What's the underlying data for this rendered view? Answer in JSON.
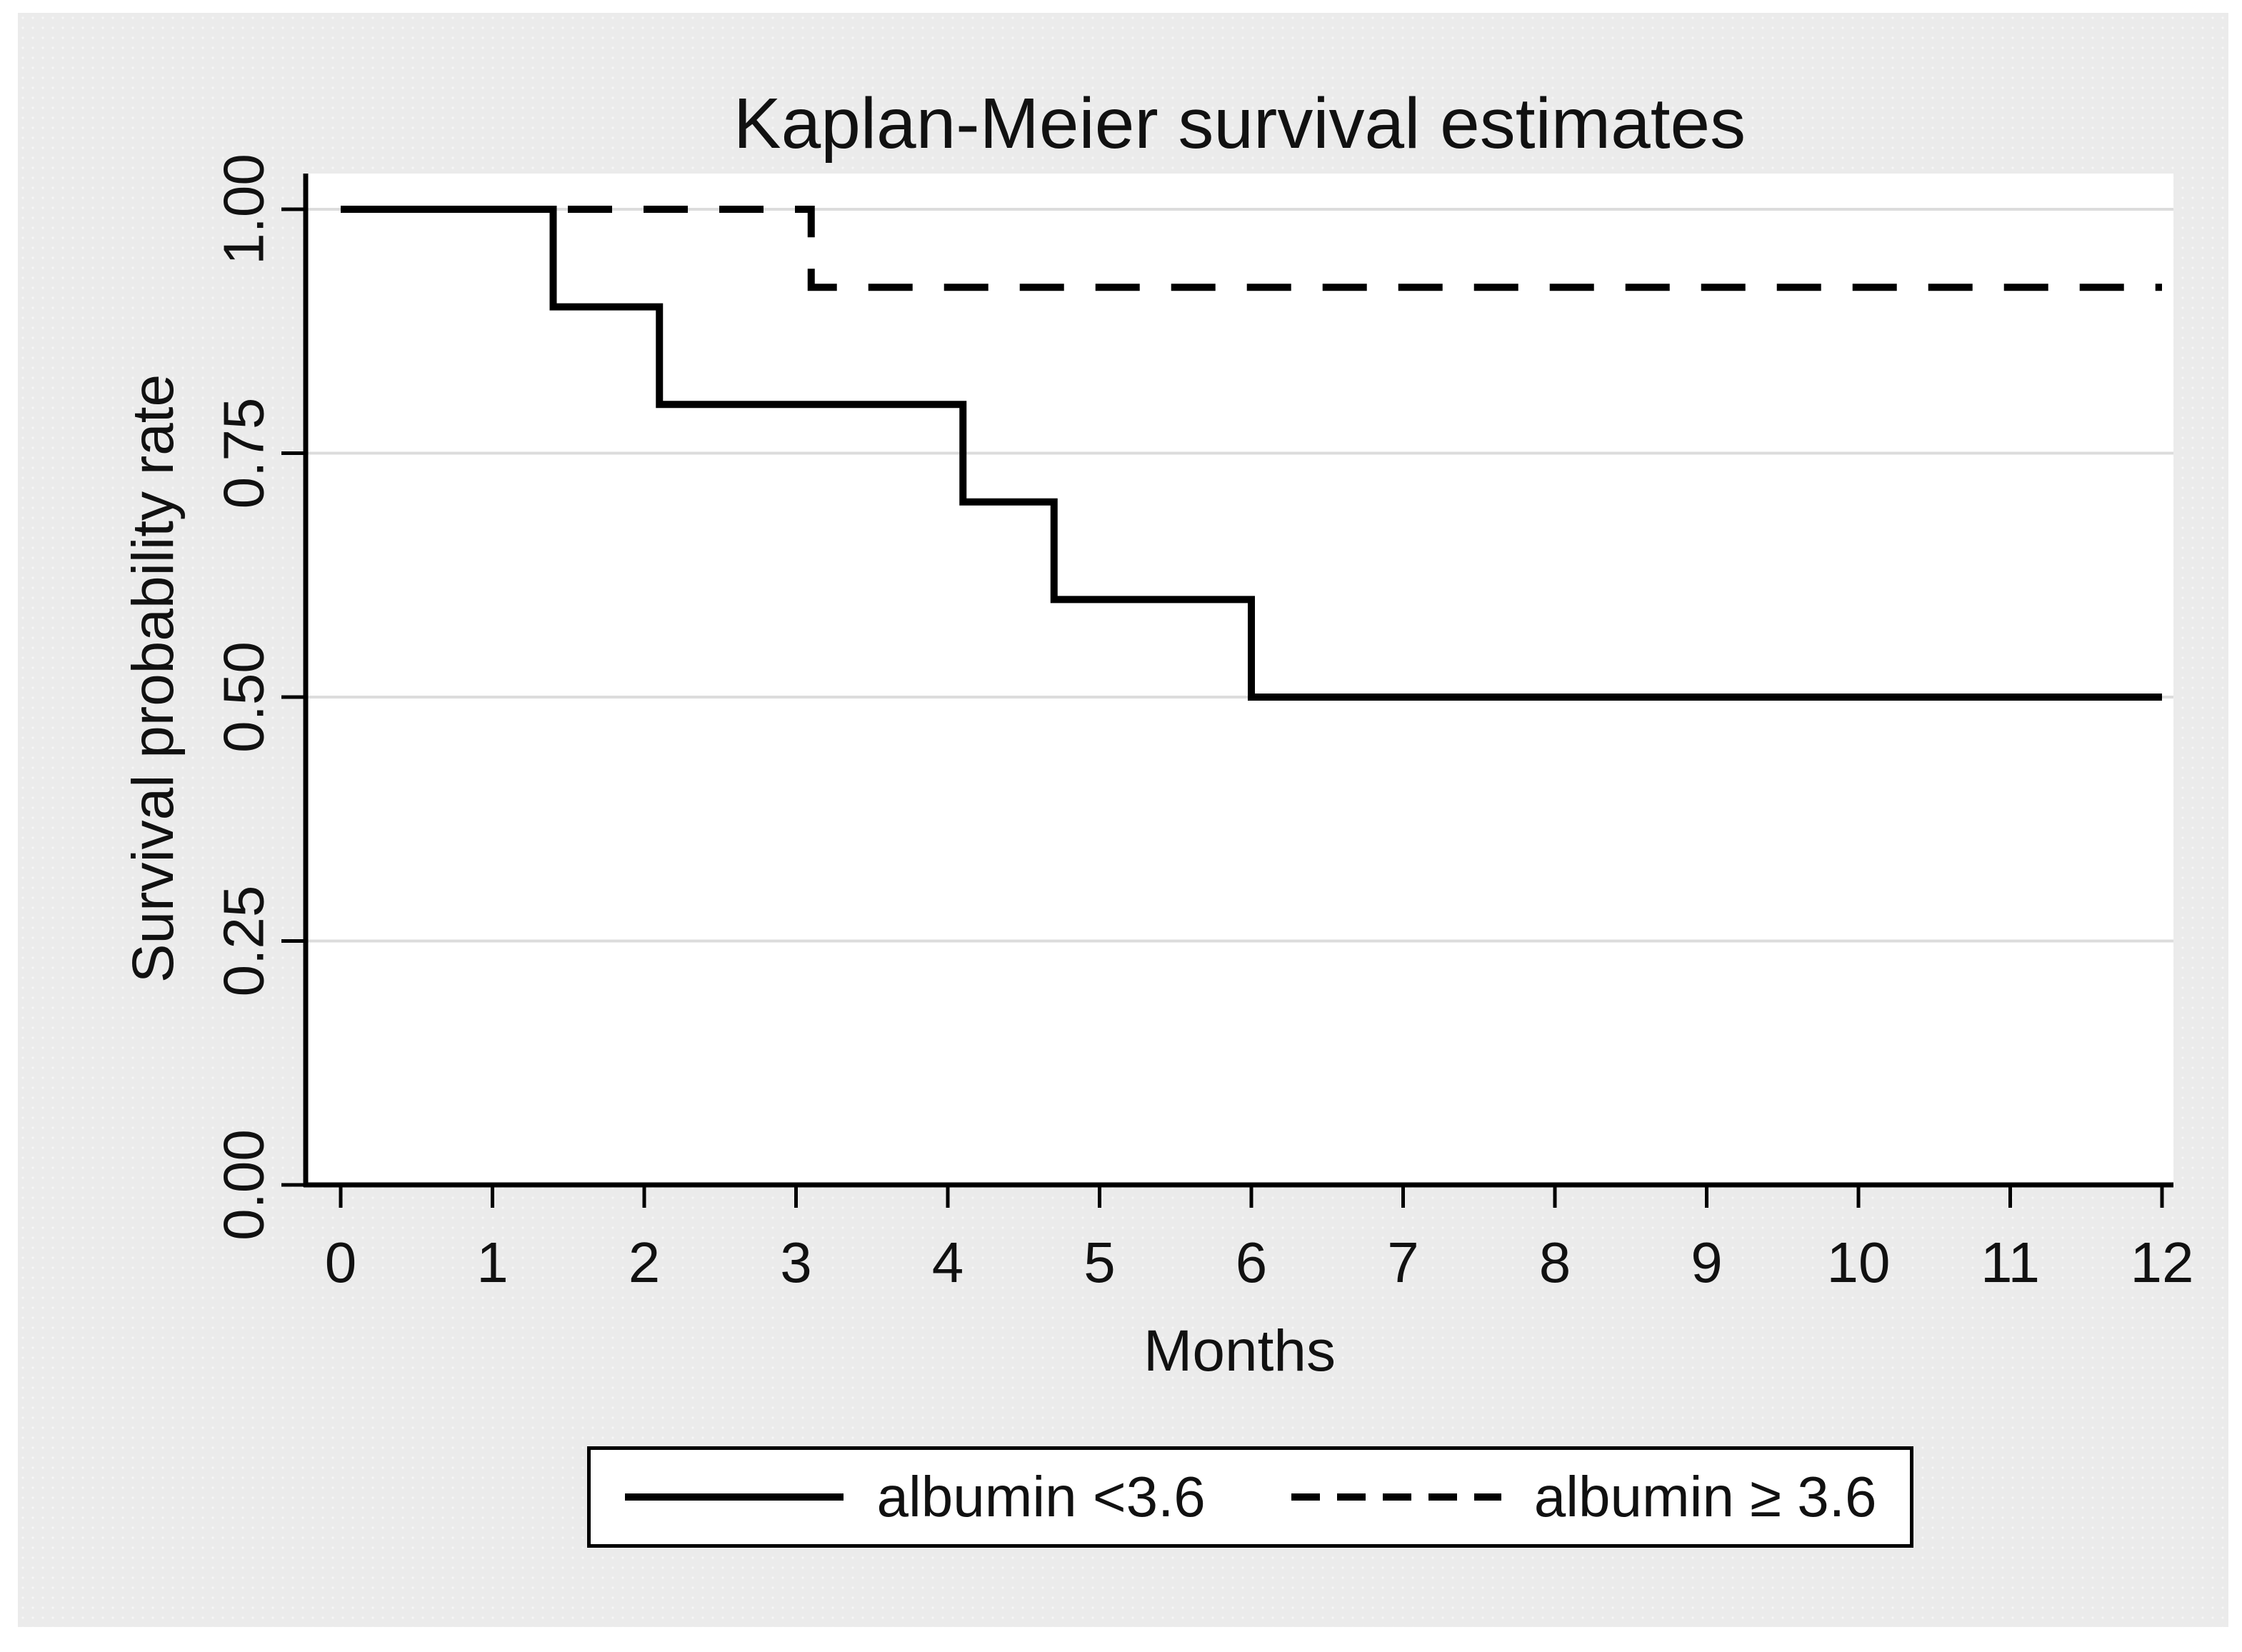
{
  "chart_data": {
    "type": "line",
    "subtype": "kaplan-meier-step",
    "title": "Kaplan-Meier survival estimates",
    "xlabel": "Months",
    "ylabel": "Survival probability rate",
    "xlim": [
      0,
      12
    ],
    "ylim": [
      0,
      1
    ],
    "grid": true,
    "grid_color": "#dcdcdc",
    "axis_color": "#000000",
    "plot_background": "#ffffff",
    "page_background": "#ebebeb",
    "legend_position": "bottom-center-boxed",
    "x_ticks": [
      0,
      1,
      2,
      3,
      4,
      5,
      6,
      7,
      8,
      9,
      10,
      11,
      12
    ],
    "y_ticks": [
      {
        "label": "1.00",
        "value": 1.0
      },
      {
        "label": "0.75",
        "value": 0.75
      },
      {
        "label": "0.50",
        "value": 0.5
      },
      {
        "label": "0.25",
        "value": 0.25
      },
      {
        "label": "0.00",
        "value": 0.0
      }
    ],
    "series": [
      {
        "name": "albumin <3.6",
        "style": "solid",
        "color": "#000000",
        "step_points": [
          [
            0,
            1.0
          ],
          [
            1.4,
            1.0
          ],
          [
            1.4,
            0.9
          ],
          [
            2.1,
            0.9
          ],
          [
            2.1,
            0.8
          ],
          [
            4.1,
            0.8
          ],
          [
            4.1,
            0.7
          ],
          [
            4.7,
            0.7
          ],
          [
            4.7,
            0.6
          ],
          [
            6.0,
            0.6
          ],
          [
            6.0,
            0.5
          ],
          [
            12,
            0.5
          ]
        ]
      },
      {
        "name": "albumin ≥ 3.6",
        "style": "dashed",
        "color": "#000000",
        "step_points": [
          [
            0,
            1.0
          ],
          [
            3.1,
            1.0
          ],
          [
            3.1,
            0.92
          ],
          [
            12,
            0.92
          ]
        ]
      }
    ]
  }
}
